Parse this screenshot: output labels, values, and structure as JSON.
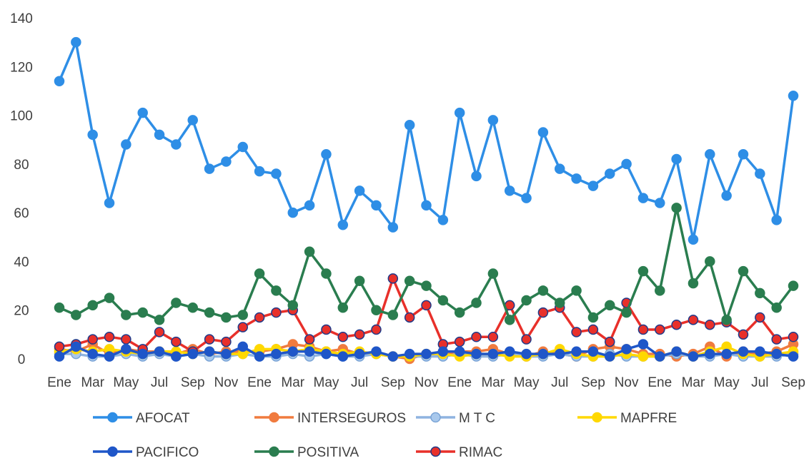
{
  "chart_data": {
    "type": "line",
    "title": "",
    "xlabel": "",
    "ylabel": "",
    "ylim": [
      0,
      140
    ],
    "yticks": [
      0,
      20,
      40,
      60,
      80,
      100,
      120,
      140
    ],
    "grid": false,
    "legend_position": "bottom",
    "x_tick_labels": [
      "Ene",
      "Mar",
      "May",
      "Jul",
      "Sep",
      "Nov",
      "Ene",
      "Mar",
      "May",
      "Jul",
      "Sep",
      "Nov",
      "Ene",
      "Mar",
      "May",
      "Jul",
      "Sep",
      "Nov",
      "Ene",
      "Mar",
      "May",
      "Jul",
      "Sep"
    ],
    "series": [
      {
        "name": "AFOCAT",
        "color": "#2e8ee6",
        "line_color": "#2e8ee6",
        "marker_edge": "#2e8ee6",
        "values": [
          114,
          130,
          92,
          64,
          88,
          101,
          92,
          88,
          98,
          78,
          81,
          87,
          77,
          76,
          60,
          63,
          84,
          55,
          69,
          63,
          54,
          96,
          63,
          57,
          101,
          75,
          98,
          69,
          66,
          93,
          78,
          74,
          71,
          76,
          80,
          66,
          64,
          82,
          49,
          84,
          67,
          84,
          76,
          57,
          108
        ]
      },
      {
        "name": "INTERSEGUROS",
        "color": "#f07b3f",
        "line_color": "#f07b3f",
        "marker_edge": "#f07b3f",
        "values": [
          4,
          3,
          6,
          2,
          4,
          3,
          3,
          2,
          4,
          2,
          3,
          3,
          3,
          4,
          6,
          5,
          3,
          4,
          2,
          2,
          1,
          0,
          2,
          2,
          3,
          3,
          4,
          2,
          1,
          3,
          2,
          1,
          4,
          5,
          4,
          2,
          2,
          1,
          2,
          5,
          1,
          3,
          2,
          3,
          6
        ]
      },
      {
        "name": "M T C",
        "color": "#a8c8ec",
        "line_color": "#8fb4e0",
        "marker_edge": "#7aa4d6",
        "values": [
          2,
          2,
          1,
          1,
          2,
          1,
          2,
          1,
          2,
          1,
          1,
          2,
          1,
          1,
          2,
          1,
          2,
          1,
          1,
          2,
          1,
          1,
          1,
          1,
          2,
          1,
          1,
          2,
          1,
          1,
          2,
          1,
          1,
          2,
          1,
          1,
          1,
          2,
          1,
          1,
          2,
          1,
          1,
          1,
          2
        ]
      },
      {
        "name": "MAPFRE",
        "color": "#ffd800",
        "line_color": "#ffd800",
        "marker_edge": "#ffd800",
        "values": [
          3,
          4,
          3,
          4,
          3,
          2,
          3,
          3,
          2,
          3,
          2,
          2,
          4,
          4,
          3,
          4,
          3,
          2,
          3,
          2,
          1,
          1,
          2,
          2,
          1,
          2,
          2,
          1,
          1,
          2,
          4,
          2,
          1,
          1,
          2,
          1,
          1,
          3,
          1,
          3,
          5,
          2,
          1,
          2,
          3
        ]
      },
      {
        "name": "PACIFICO",
        "color": "#1f56c8",
        "line_color": "#1f56c8",
        "marker_edge": "#1f56c8",
        "values": [
          1,
          5,
          2,
          1,
          4,
          2,
          3,
          1,
          2,
          3,
          2,
          5,
          1,
          2,
          3,
          3,
          2,
          1,
          2,
          3,
          1,
          2,
          2,
          3,
          3,
          2,
          2,
          3,
          2,
          2,
          2,
          3,
          3,
          1,
          4,
          6,
          1,
          3,
          1,
          2,
          2,
          3,
          3,
          2,
          1
        ]
      },
      {
        "name": "POSITIVA",
        "color": "#2a7d4f",
        "line_color": "#2a7d4f",
        "marker_edge": "#2a7d4f",
        "values": [
          21,
          18,
          22,
          25,
          18,
          19,
          16,
          23,
          21,
          19,
          17,
          18,
          35,
          28,
          22,
          44,
          35,
          21,
          32,
          20,
          18,
          32,
          30,
          24,
          19,
          23,
          35,
          16,
          24,
          28,
          23,
          28,
          17,
          22,
          19,
          36,
          28,
          62,
          31,
          40,
          16,
          36,
          27,
          21,
          30
        ]
      },
      {
        "name": "RIMAC",
        "color": "#e8302a",
        "line_color": "#e8302a",
        "marker_edge": "#1e3a8a",
        "values": [
          5,
          6,
          8,
          9,
          8,
          4,
          11,
          7,
          3,
          8,
          7,
          13,
          17,
          19,
          20,
          8,
          12,
          9,
          10,
          12,
          33,
          17,
          22,
          6,
          7,
          9,
          9,
          22,
          8,
          19,
          21,
          11,
          12,
          7,
          23,
          12,
          12,
          14,
          16,
          14,
          15,
          10,
          17,
          8,
          9
        ]
      }
    ]
  }
}
